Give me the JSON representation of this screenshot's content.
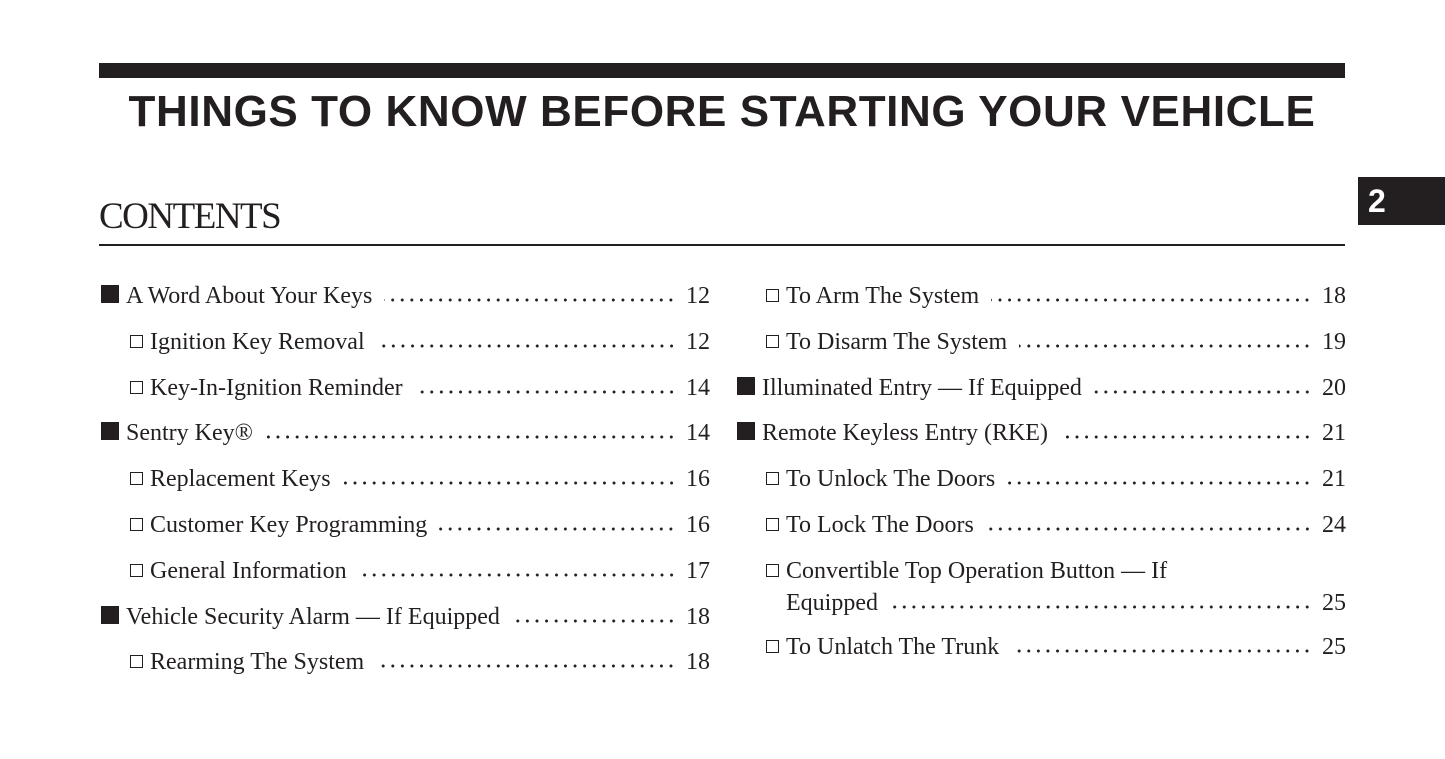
{
  "header": {
    "title": "THINGS TO KNOW BEFORE STARTING YOUR VEHICLE",
    "chapter_tab": "2"
  },
  "contents": {
    "heading": "CONTENTS",
    "left": [
      {
        "level": "main",
        "label": "A Word About Your Keys",
        "page": "12"
      },
      {
        "level": "sub",
        "label": "Ignition Key Removal",
        "page": "12"
      },
      {
        "level": "sub",
        "label": "Key-In-Ignition Reminder",
        "page": "14"
      },
      {
        "level": "main",
        "label": "Sentry Key®",
        "page": "14"
      },
      {
        "level": "sub",
        "label": "Replacement Keys",
        "page": "16"
      },
      {
        "level": "sub",
        "label": "Customer Key Programming",
        "page": "16"
      },
      {
        "level": "sub",
        "label": "General Information",
        "page": "17"
      },
      {
        "level": "main",
        "label": "Vehicle Security Alarm — If Equipped",
        "page": "18"
      },
      {
        "level": "sub",
        "label": "Rearming The System",
        "page": "18"
      }
    ],
    "right": [
      {
        "level": "sub",
        "label": "To Arm The System",
        "page": "18"
      },
      {
        "level": "sub",
        "label": "To Disarm The System",
        "page": "19"
      },
      {
        "level": "main",
        "label": "Illuminated Entry — If Equipped",
        "page": "20"
      },
      {
        "level": "main",
        "label": "Remote Keyless Entry (RKE)",
        "page": "21"
      },
      {
        "level": "sub",
        "label": "To Unlock The Doors",
        "page": "21"
      },
      {
        "level": "sub",
        "label": "To Lock The Doors",
        "page": "24"
      },
      {
        "level": "sub",
        "label": "Convertible Top Operation Button — If",
        "label_cont": "Equipped",
        "page": "25"
      },
      {
        "level": "sub",
        "label": "To Unlatch The Trunk",
        "page": "25"
      }
    ]
  }
}
